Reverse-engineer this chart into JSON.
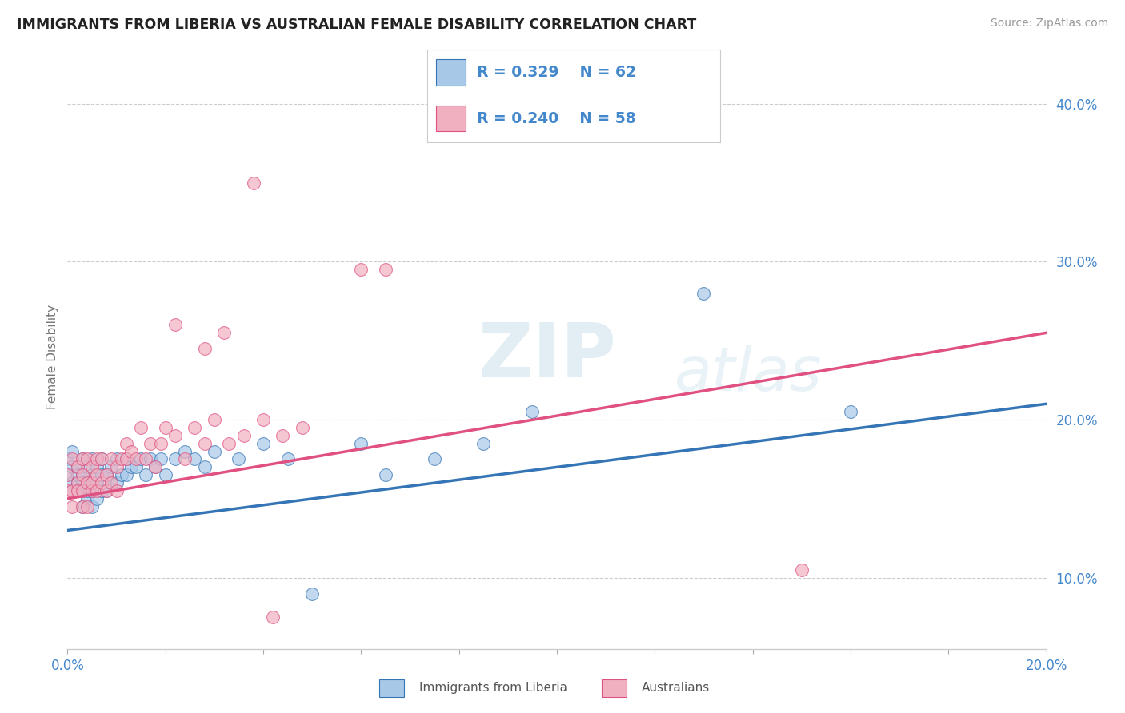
{
  "title": "IMMIGRANTS FROM LIBERIA VS AUSTRALIAN FEMALE DISABILITY CORRELATION CHART",
  "source": "Source: ZipAtlas.com",
  "ylabel_label": "Female Disability",
  "xlim": [
    0.0,
    0.2
  ],
  "ylim": [
    0.055,
    0.425
  ],
  "y_ticks": [
    0.1,
    0.2,
    0.3,
    0.4
  ],
  "y_tick_labels": [
    "10.0%",
    "20.0%",
    "30.0%",
    "40.0%"
  ],
  "color_blue": "#a8c8e8",
  "color_pink": "#f0b0c0",
  "color_blue_line": "#3575b5",
  "color_pink_line": "#e05080",
  "watermark_zip": "ZIP",
  "watermark_atlas": "atlas",
  "blue_r": "0.329",
  "blue_n": "62",
  "pink_r": "0.240",
  "pink_n": "58",
  "blue_x": [
    0.0,
    0.0,
    0.001,
    0.001,
    0.001,
    0.001,
    0.002,
    0.002,
    0.002,
    0.002,
    0.003,
    0.003,
    0.003,
    0.003,
    0.003,
    0.004,
    0.004,
    0.004,
    0.004,
    0.005,
    0.005,
    0.005,
    0.005,
    0.006,
    0.006,
    0.006,
    0.007,
    0.007,
    0.007,
    0.008,
    0.008,
    0.009,
    0.009,
    0.01,
    0.01,
    0.011,
    0.012,
    0.012,
    0.013,
    0.014,
    0.015,
    0.016,
    0.017,
    0.018,
    0.019,
    0.02,
    0.022,
    0.024,
    0.026,
    0.028,
    0.03,
    0.035,
    0.04,
    0.045,
    0.05,
    0.06,
    0.065,
    0.075,
    0.085,
    0.095,
    0.13,
    0.16
  ],
  "blue_y": [
    0.175,
    0.165,
    0.155,
    0.17,
    0.18,
    0.16,
    0.16,
    0.17,
    0.155,
    0.165,
    0.155,
    0.165,
    0.175,
    0.145,
    0.16,
    0.15,
    0.16,
    0.17,
    0.155,
    0.155,
    0.165,
    0.175,
    0.145,
    0.16,
    0.17,
    0.15,
    0.155,
    0.165,
    0.175,
    0.155,
    0.165,
    0.16,
    0.17,
    0.16,
    0.175,
    0.165,
    0.165,
    0.175,
    0.17,
    0.17,
    0.175,
    0.165,
    0.175,
    0.17,
    0.175,
    0.165,
    0.175,
    0.18,
    0.175,
    0.17,
    0.18,
    0.175,
    0.185,
    0.175,
    0.09,
    0.185,
    0.165,
    0.175,
    0.185,
    0.205,
    0.28,
    0.205
  ],
  "pink_x": [
    0.0,
    0.0,
    0.001,
    0.001,
    0.001,
    0.002,
    0.002,
    0.002,
    0.003,
    0.003,
    0.003,
    0.003,
    0.004,
    0.004,
    0.004,
    0.005,
    0.005,
    0.005,
    0.006,
    0.006,
    0.006,
    0.007,
    0.007,
    0.008,
    0.008,
    0.009,
    0.009,
    0.01,
    0.01,
    0.011,
    0.012,
    0.012,
    0.013,
    0.014,
    0.015,
    0.016,
    0.017,
    0.018,
    0.019,
    0.02,
    0.022,
    0.024,
    0.026,
    0.028,
    0.03,
    0.033,
    0.036,
    0.04,
    0.044,
    0.048,
    0.022,
    0.028,
    0.032,
    0.038,
    0.042,
    0.15,
    0.06,
    0.065
  ],
  "pink_y": [
    0.155,
    0.165,
    0.145,
    0.155,
    0.175,
    0.16,
    0.155,
    0.17,
    0.145,
    0.165,
    0.175,
    0.155,
    0.16,
    0.175,
    0.145,
    0.155,
    0.17,
    0.16,
    0.165,
    0.155,
    0.175,
    0.16,
    0.175,
    0.165,
    0.155,
    0.175,
    0.16,
    0.17,
    0.155,
    0.175,
    0.175,
    0.185,
    0.18,
    0.175,
    0.195,
    0.175,
    0.185,
    0.17,
    0.185,
    0.195,
    0.19,
    0.175,
    0.195,
    0.185,
    0.2,
    0.185,
    0.19,
    0.2,
    0.19,
    0.195,
    0.26,
    0.245,
    0.255,
    0.35,
    0.075,
    0.105,
    0.295,
    0.295
  ]
}
